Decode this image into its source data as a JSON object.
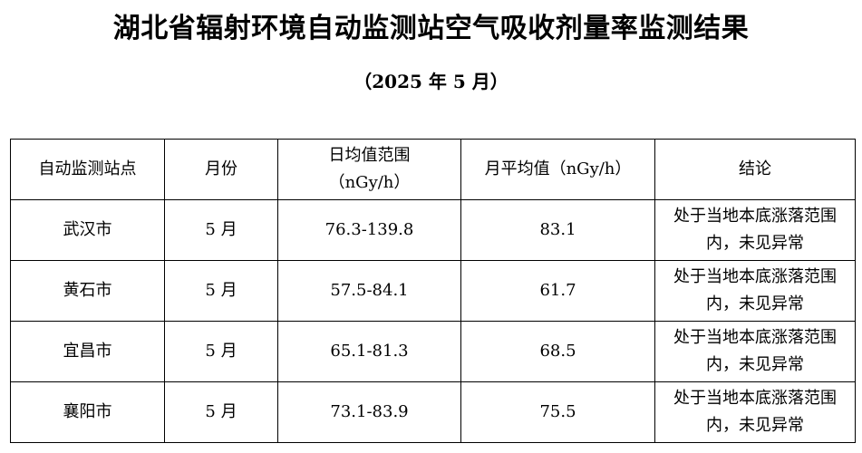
{
  "header": {
    "title": "湖北省辐射环境自动监测站空气吸收剂量率监测结果",
    "subtitle": "（2025 年 5 月）"
  },
  "table": {
    "columns": [
      "自动监测站点",
      "月份",
      "日均值范围（nGy/h）",
      "月平均值（nGy/h）",
      "结论"
    ],
    "rows": [
      [
        "武汉市",
        "5 月",
        "76.3-139.8",
        "83.1",
        "处于当地本底涨落范围内，未见异常"
      ],
      [
        "黄石市",
        "5 月",
        "57.5-84.1",
        "61.7",
        "处于当地本底涨落范围内，未见异常"
      ],
      [
        "宜昌市",
        "5 月",
        "65.1-81.3",
        "68.5",
        "处于当地本底涨落范围内，未见异常"
      ],
      [
        "襄阳市",
        "5 月",
        "73.1-83.9",
        "75.5",
        "处于当地本底涨落范围内，未见异常"
      ]
    ]
  }
}
